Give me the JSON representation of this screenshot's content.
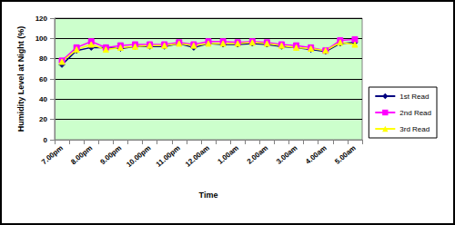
{
  "chart_data": {
    "type": "line",
    "x_label": "Time",
    "y_label": "Humidity Level at Night (%)",
    "categories": [
      "7.00pm",
      null,
      "8.00pm",
      null,
      "9.00pm",
      null,
      "10.00pm",
      null,
      "11.00pm",
      null,
      "12.00am",
      null,
      "1.00am",
      null,
      "2.00am",
      null,
      "3.00am",
      null,
      "4.00am",
      null,
      "5.00am"
    ],
    "series": [
      {
        "name": "1st Read",
        "color": "#000080",
        "marker": "diamond",
        "values": [
          74,
          88,
          91,
          91,
          90,
          92,
          92,
          92,
          95,
          91,
          95,
          94,
          94,
          95,
          94,
          92,
          91,
          89,
          87,
          95,
          96
        ]
      },
      {
        "name": "2nd Read",
        "color": "#ff00ff",
        "marker": "square",
        "values": [
          78,
          91,
          97,
          91,
          93,
          94,
          94,
          94,
          96,
          94,
          97,
          97,
          96,
          97,
          96,
          94,
          93,
          91,
          88,
          98,
          99
        ]
      },
      {
        "name": "3rd Read",
        "color": "#ffff00",
        "marker": "triangle",
        "values": [
          77,
          89,
          94,
          89,
          91,
          92,
          93,
          93,
          95,
          93,
          95,
          95,
          95,
          96,
          95,
          93,
          91,
          90,
          88,
          96,
          94
        ]
      }
    ],
    "ylim": [
      0,
      120
    ],
    "yticks": [
      0,
      20,
      40,
      60,
      80,
      100,
      120
    ],
    "grid": true,
    "legend": "right"
  }
}
